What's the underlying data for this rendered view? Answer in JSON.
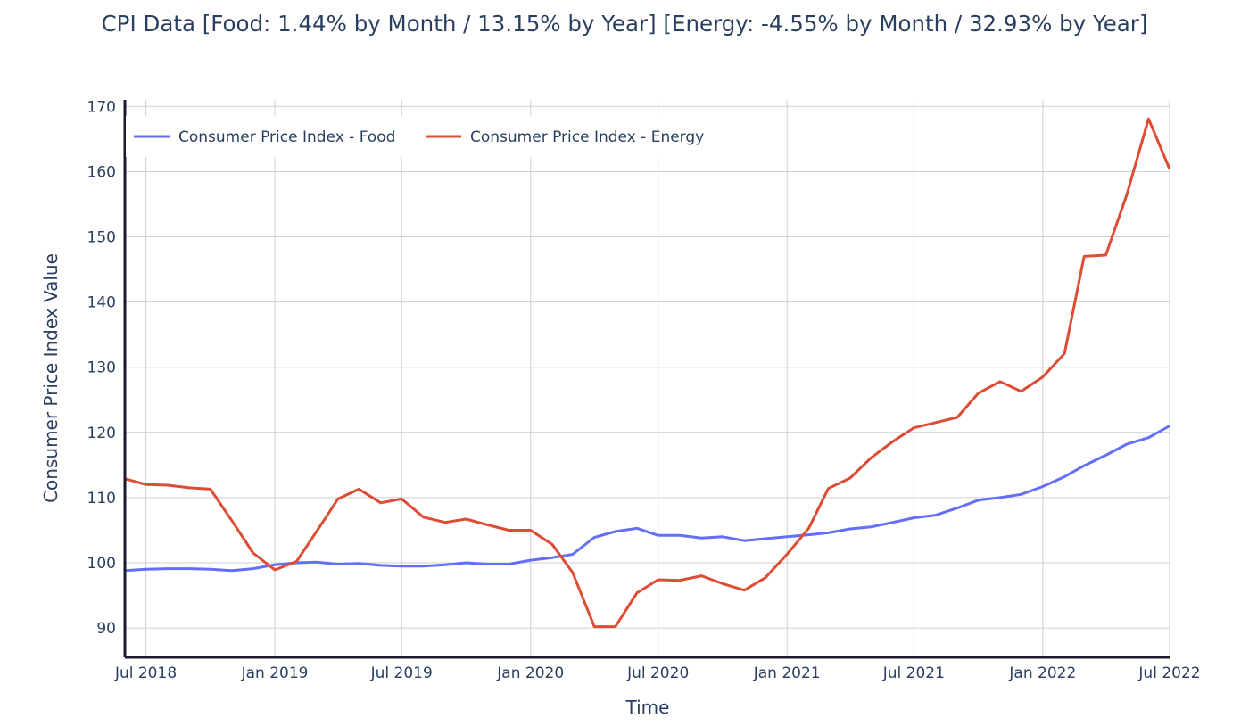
{
  "chart_data": {
    "type": "line",
    "title": "CPI Data [Food: 1.44% by Month / 13.15% by Year] [Energy: -4.55% by Month / 32.93% by Year]",
    "xlabel": "Time",
    "ylabel": "Consumer Price Index Value",
    "xlim": [
      "2018-06-01",
      "2022-07-01"
    ],
    "ylim": [
      85.5,
      171
    ],
    "x_ticks": [
      {
        "date": "2018-07-01",
        "label": "Jul 2018"
      },
      {
        "date": "2019-01-01",
        "label": "Jan 2019"
      },
      {
        "date": "2019-07-01",
        "label": "Jul 2019"
      },
      {
        "date": "2020-01-01",
        "label": "Jan 2020"
      },
      {
        "date": "2020-07-01",
        "label": "Jul 2020"
      },
      {
        "date": "2021-01-01",
        "label": "Jan 2021"
      },
      {
        "date": "2021-07-01",
        "label": "Jul 2021"
      },
      {
        "date": "2022-01-01",
        "label": "Jan 2022"
      },
      {
        "date": "2022-07-01",
        "label": "Jul 2022"
      }
    ],
    "y_ticks": [
      90,
      100,
      110,
      120,
      130,
      140,
      150,
      160,
      170
    ],
    "grid": true,
    "legend_position": "top-left",
    "x": [
      "2018-06-01",
      "2018-07-01",
      "2018-08-01",
      "2018-09-01",
      "2018-10-01",
      "2018-11-01",
      "2018-12-01",
      "2019-01-01",
      "2019-02-01",
      "2019-03-01",
      "2019-04-01",
      "2019-05-01",
      "2019-06-01",
      "2019-07-01",
      "2019-08-01",
      "2019-09-01",
      "2019-10-01",
      "2019-11-01",
      "2019-12-01",
      "2020-01-01",
      "2020-02-01",
      "2020-03-01",
      "2020-04-01",
      "2020-05-01",
      "2020-06-01",
      "2020-07-01",
      "2020-08-01",
      "2020-09-01",
      "2020-10-01",
      "2020-11-01",
      "2020-12-01",
      "2021-01-01",
      "2021-02-01",
      "2021-03-01",
      "2021-04-01",
      "2021-05-01",
      "2021-06-01",
      "2021-07-01",
      "2021-08-01",
      "2021-09-01",
      "2021-10-01",
      "2021-11-01",
      "2021-12-01",
      "2022-01-01",
      "2022-02-01",
      "2022-03-01",
      "2022-04-01",
      "2022-05-01",
      "2022-06-01",
      "2022-07-01"
    ],
    "series": [
      {
        "name": "Consumer Price Index - Food",
        "color": "#636efa",
        "values": [
          98.8,
          99.0,
          99.1,
          99.1,
          99.0,
          98.8,
          99.1,
          99.7,
          100.0,
          100.1,
          99.8,
          99.9,
          99.6,
          99.5,
          99.5,
          99.7,
          100.0,
          99.8,
          99.8,
          100.4,
          100.8,
          101.3,
          103.9,
          104.8,
          105.3,
          104.2,
          104.2,
          103.8,
          104.0,
          103.4,
          103.7,
          104.0,
          104.3,
          104.6,
          105.2,
          105.5,
          106.2,
          106.9,
          107.3,
          108.4,
          109.6,
          110.0,
          110.5,
          111.7,
          113.2,
          114.9,
          116.5,
          118.2,
          119.2,
          121.0
        ]
      },
      {
        "name": "Consumer Price Index - Energy",
        "color": "#dd4d35",
        "values": [
          112.9,
          112.0,
          111.9,
          111.5,
          111.3,
          106.4,
          101.5,
          98.9,
          100.2,
          104.7,
          109.8,
          111.3,
          109.2,
          109.8,
          107.0,
          106.2,
          106.7,
          105.8,
          105.0,
          105.0,
          102.8,
          98.5,
          90.2,
          90.2,
          95.4,
          97.4,
          97.3,
          98.0,
          96.8,
          95.8,
          97.7,
          101.3,
          105.3,
          111.4,
          113.0,
          116.1,
          118.6,
          120.7,
          121.5,
          122.3,
          126.0,
          127.8,
          126.3,
          128.5,
          132.1,
          147.0,
          147.2,
          156.5,
          168.1,
          160.4
        ]
      }
    ]
  }
}
